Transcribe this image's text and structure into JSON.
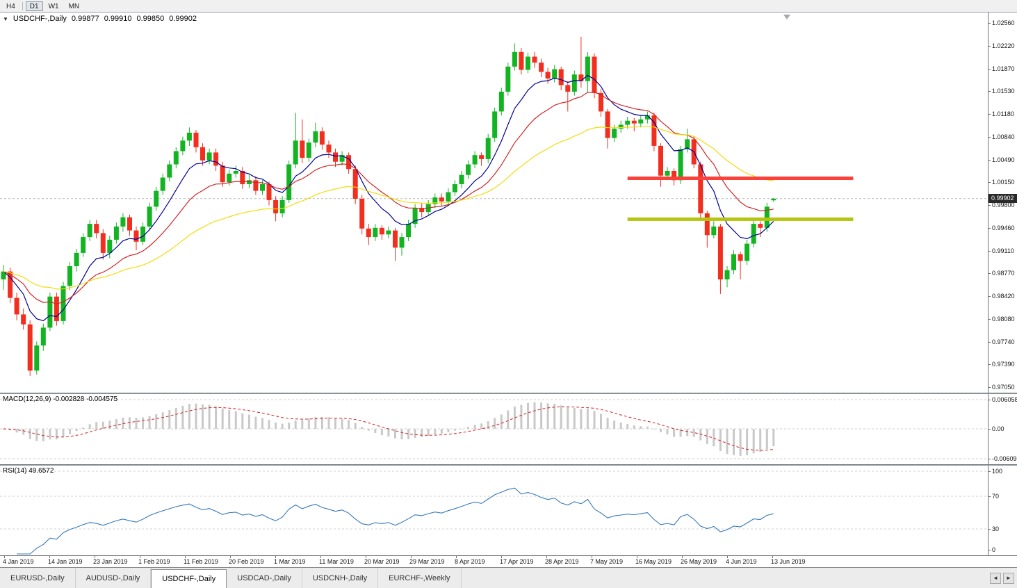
{
  "toolbar": {
    "timeframes": [
      {
        "label": "H4",
        "active": false,
        "sep_after": true
      },
      {
        "label": "D1",
        "active": true,
        "sep_after": false
      },
      {
        "label": "W1",
        "active": false,
        "sep_after": false
      },
      {
        "label": "MN",
        "active": false,
        "sep_after": false
      }
    ]
  },
  "chart": {
    "symbol_header": "USDCHF-,Daily",
    "ohlc": {
      "open": "0.99877",
      "high": "0.99910",
      "low": "0.99850",
      "close": "0.99902"
    },
    "current_price": "0.99902",
    "price_axis_labels": [
      "1.02560",
      "1.02220",
      "1.01870",
      "1.01530",
      "1.01180",
      "1.00840",
      "1.00490",
      "1.00150",
      "0.99800",
      "0.99460",
      "0.99110",
      "0.98770",
      "0.98420",
      "0.98080",
      "0.97740",
      "0.97390",
      "0.97050"
    ],
    "date_axis_labels": [
      "4 Jan 2019",
      "14 Jan 2019",
      "23 Jan 2019",
      "1 Feb 2019",
      "11 Feb 2019",
      "20 Feb 2019",
      "1 Mar 2019",
      "11 Mar 2019",
      "20 Mar 2019",
      "29 Mar 2019",
      "8 Apr 2019",
      "17 Apr 2019",
      "28 Apr 2019",
      "7 May 2019",
      "16 May 2019",
      "26 May 2019",
      "4 Jun 2019",
      "13 Jun 2019"
    ]
  },
  "macd": {
    "label": "MACD(12,26,9) -0.002828 -0.004575",
    "axis_labels": [
      "0.006058",
      "0.00",
      "-0.006096"
    ]
  },
  "rsi": {
    "label": "RSI(14) 49.6572",
    "axis_labels": [
      "100",
      "70",
      "30",
      "0"
    ]
  },
  "tabs": [
    {
      "label": "EURUSD-,Daily",
      "active": false
    },
    {
      "label": "AUDUSD-,Daily",
      "active": false
    },
    {
      "label": "USDCHF-,Daily",
      "active": true
    },
    {
      "label": "USDCAD-,Daily",
      "active": false
    },
    {
      "label": "USDCNH-,Daily",
      "active": false
    },
    {
      "label": "EURCHF-,Weekly",
      "active": false
    }
  ],
  "colors": {
    "bull": "#12b422",
    "bear": "#f22e1e",
    "ma_fast": "#000096",
    "ma_mid": "#d02626",
    "ma_slow": "#f3dc0a",
    "macd_hist": "#c9c9c9",
    "macd_signal": "#cc2222",
    "rsi_line": "#3579b8",
    "resistance": "#f9423a",
    "support": "#b5c40c",
    "price_tag_bg": "#2a2a2a"
  },
  "chart_data": {
    "type": "candlestick",
    "symbol": "USDCHF-,Daily",
    "timeframe": "Daily",
    "price_top": 1.0256,
    "price_bottom": 0.9705,
    "current_price": 0.99902,
    "ma_periods": [
      8,
      17,
      40
    ],
    "indicators": {
      "macd": {
        "fast": 12,
        "slow": 26,
        "signal": 9,
        "axis_top": 0.006058,
        "axis_bottom": -0.006096,
        "values_shown": [
          -0.002828,
          -0.004575
        ]
      },
      "rsi": {
        "period": 14,
        "levels": [
          100,
          70,
          30,
          0
        ],
        "value_shown": 49.6572
      }
    },
    "hlines": [
      {
        "name": "resistance-line",
        "price": 1.0021,
        "start_index": 94,
        "end_index": 128,
        "color_key": "resistance",
        "thickness": 5
      },
      {
        "name": "support-line",
        "price": 0.9959,
        "start_index": 94,
        "end_index": 128,
        "color_key": "support",
        "thickness": 5
      }
    ],
    "candles": [
      [
        0.9868,
        0.989,
        0.9852,
        0.988
      ],
      [
        0.988,
        0.9886,
        0.9832,
        0.984
      ],
      [
        0.984,
        0.9848,
        0.9806,
        0.9815
      ],
      [
        0.9815,
        0.9824,
        0.9792,
        0.98
      ],
      [
        0.98,
        0.9806,
        0.9722,
        0.973
      ],
      [
        0.973,
        0.9774,
        0.9724,
        0.9768
      ],
      [
        0.9768,
        0.9801,
        0.976,
        0.9795
      ],
      [
        0.9795,
        0.9848,
        0.979,
        0.9842
      ],
      [
        0.9842,
        0.9848,
        0.9798,
        0.9805
      ],
      [
        0.9805,
        0.9864,
        0.98,
        0.9858
      ],
      [
        0.9858,
        0.9894,
        0.9852,
        0.9888
      ],
      [
        0.9888,
        0.9914,
        0.988,
        0.9908
      ],
      [
        0.9908,
        0.9938,
        0.9902,
        0.9932
      ],
      [
        0.9932,
        0.9958,
        0.9926,
        0.9952
      ],
      [
        0.9952,
        0.9958,
        0.993,
        0.9938
      ],
      [
        0.9938,
        0.9944,
        0.9898,
        0.9908
      ],
      [
        0.9908,
        0.9934,
        0.99,
        0.9928
      ],
      [
        0.9928,
        0.9954,
        0.9922,
        0.9948
      ],
      [
        0.9948,
        0.9968,
        0.994,
        0.9962
      ],
      [
        0.9962,
        0.9966,
        0.9934,
        0.9942
      ],
      [
        0.9942,
        0.9948,
        0.9912,
        0.9925
      ],
      [
        0.9925,
        0.9954,
        0.992,
        0.9948
      ],
      [
        0.9948,
        0.9984,
        0.9944,
        0.9978
      ],
      [
        0.9978,
        1.0008,
        0.9972,
        1.0002
      ],
      [
        1.0002,
        1.0028,
        0.9996,
        1.0022
      ],
      [
        1.0022,
        1.0048,
        1.0016,
        1.0042
      ],
      [
        1.0042,
        1.0068,
        1.0036,
        1.0062
      ],
      [
        1.0062,
        1.0084,
        1.0056,
        1.0078
      ],
      [
        1.0078,
        1.0098,
        1.007,
        1.009
      ],
      [
        1.009,
        1.0094,
        1.006,
        1.0068
      ],
      [
        1.0068,
        1.0074,
        1.004,
        1.0048
      ],
      [
        1.0048,
        1.0066,
        1.0042,
        1.006
      ],
      [
        1.006,
        1.0066,
        1.0032,
        1.004
      ],
      [
        1.004,
        1.0046,
        1.0008,
        1.0015
      ],
      [
        1.0015,
        1.0034,
        1.001,
        1.0028
      ],
      [
        1.0028,
        1.004,
        1.0022,
        1.0032
      ],
      [
        1.0032,
        1.0038,
        1.0005,
        1.0012
      ],
      [
        1.0012,
        1.0026,
        1.0006,
        1.0018
      ],
      [
        1.0018,
        1.0024,
        0.9996,
        1.0002
      ],
      [
        1.0002,
        1.0018,
        0.9996,
        1.0012
      ],
      [
        1.0012,
        1.0016,
        0.998,
        0.9988
      ],
      [
        0.9988,
        0.9994,
        0.9956,
        0.9968
      ],
      [
        0.9968,
        0.9994,
        0.9962,
        0.9988
      ],
      [
        0.9988,
        1.0048,
        0.9984,
        1.0042
      ],
      [
        1.0042,
        1.012,
        1.0036,
        1.0078
      ],
      [
        1.0078,
        1.011,
        1.0044,
        1.0052
      ],
      [
        1.0052,
        1.0081,
        1.0046,
        1.0075
      ],
      [
        1.0075,
        1.0105,
        1.0068,
        1.0092
      ],
      [
        1.0092,
        1.0098,
        1.0064,
        1.0072
      ],
      [
        1.0072,
        1.0078,
        1.0052,
        1.006
      ],
      [
        1.006,
        1.0066,
        1.0038,
        1.0046
      ],
      [
        1.0046,
        1.0062,
        1.004,
        1.0056
      ],
      [
        1.0056,
        1.006,
        1.0028,
        1.0035
      ],
      [
        1.0035,
        1.004,
        0.9982,
        0.999
      ],
      [
        0.999,
        0.9996,
        0.9936,
        0.9945
      ],
      [
        0.9945,
        0.9952,
        0.992,
        0.9932
      ],
      [
        0.9932,
        0.9952,
        0.9926,
        0.9946
      ],
      [
        0.9946,
        0.995,
        0.9928,
        0.9936
      ],
      [
        0.9936,
        0.9948,
        0.993,
        0.9942
      ],
      [
        0.9942,
        0.9946,
        0.9896,
        0.9916
      ],
      [
        0.9916,
        0.9938,
        0.9904,
        0.9932
      ],
      [
        0.9932,
        0.9958,
        0.9926,
        0.9952
      ],
      [
        0.9952,
        0.9982,
        0.9946,
        0.9976
      ],
      [
        0.9976,
        0.9984,
        0.9962,
        0.997
      ],
      [
        0.997,
        0.9988,
        0.9964,
        0.9982
      ],
      [
        0.9982,
        0.9998,
        0.9976,
        0.9992
      ],
      [
        0.9992,
        0.9998,
        0.9978,
        0.9986
      ],
      [
        0.9986,
        1.0006,
        0.998,
        1.0
      ],
      [
        1.0,
        1.0018,
        0.9994,
        1.0012
      ],
      [
        1.0012,
        1.0032,
        1.0006,
        1.0026
      ],
      [
        1.0026,
        1.0048,
        1.002,
        1.0042
      ],
      [
        1.0042,
        1.0062,
        1.0036,
        1.0056
      ],
      [
        1.0056,
        1.006,
        1.004,
        1.005
      ],
      [
        1.005,
        1.0088,
        1.0044,
        1.0082
      ],
      [
        1.0082,
        1.0128,
        1.0076,
        1.0122
      ],
      [
        1.0122,
        1.0158,
        1.0116,
        1.0152
      ],
      [
        1.0152,
        1.0196,
        1.0146,
        1.019
      ],
      [
        1.019,
        1.0225,
        1.0184,
        1.0212
      ],
      [
        1.0212,
        1.0218,
        1.0178,
        1.0185
      ],
      [
        1.0185,
        1.0211,
        1.018,
        1.0205
      ],
      [
        1.0205,
        1.0212,
        1.0188,
        1.0196
      ],
      [
        1.0196,
        1.0202,
        1.0174,
        1.0182
      ],
      [
        1.0182,
        1.0188,
        1.0164,
        1.0172
      ],
      [
        1.0172,
        1.0192,
        1.0166,
        1.0186
      ],
      [
        1.0186,
        1.019,
        1.0154,
        1.0162
      ],
      [
        1.0162,
        1.0168,
        1.0122,
        1.0152
      ],
      [
        1.0152,
        1.0184,
        1.0146,
        1.0178
      ],
      [
        1.0178,
        1.0235,
        1.0158,
        1.0168
      ],
      [
        1.0168,
        1.0212,
        1.015,
        1.0205
      ],
      [
        1.0205,
        1.021,
        1.0142,
        1.015
      ],
      [
        1.015,
        1.0156,
        1.0114,
        1.0122
      ],
      [
        1.0122,
        1.0126,
        1.0066,
        1.0082
      ],
      [
        1.0082,
        1.0102,
        1.0076,
        1.0096
      ],
      [
        1.0096,
        1.0108,
        1.009,
        1.0102
      ],
      [
        1.0102,
        1.0114,
        1.0096,
        1.0108
      ],
      [
        1.0108,
        1.0112,
        1.0092,
        1.0104
      ],
      [
        1.0104,
        1.0116,
        1.0098,
        1.011
      ],
      [
        1.011,
        1.0122,
        1.0104,
        1.0116
      ],
      [
        1.0116,
        1.012,
        1.0062,
        1.007
      ],
      [
        1.007,
        1.0074,
        1.0008,
        1.0025
      ],
      [
        1.0025,
        1.0038,
        1.0018,
        1.0032
      ],
      [
        1.0032,
        1.0036,
        1.001,
        1.0018
      ],
      [
        1.0018,
        1.007,
        1.0012,
        1.0065
      ],
      [
        1.0065,
        1.0096,
        1.006,
        1.008
      ],
      [
        1.008,
        1.0084,
        1.0036,
        1.0042
      ],
      [
        1.0042,
        1.0046,
        0.996,
        0.9968
      ],
      [
        0.9968,
        0.9972,
        0.9916,
        0.9935
      ],
      [
        0.9935,
        0.9956,
        0.993,
        0.9948
      ],
      [
        0.9948,
        0.9952,
        0.9846,
        0.9868
      ],
      [
        0.9868,
        0.9888,
        0.9856,
        0.9882
      ],
      [
        0.9882,
        0.9912,
        0.9876,
        0.9906
      ],
      [
        0.9906,
        0.991,
        0.9868,
        0.9896
      ],
      [
        0.9896,
        0.9928,
        0.989,
        0.9922
      ],
      [
        0.9922,
        0.9958,
        0.9916,
        0.9952
      ],
      [
        0.9952,
        0.9956,
        0.9932,
        0.9946
      ],
      [
        0.9946,
        0.9984,
        0.994,
        0.9978
      ],
      [
        0.99877,
        0.9991,
        0.9985,
        0.99902
      ]
    ]
  }
}
